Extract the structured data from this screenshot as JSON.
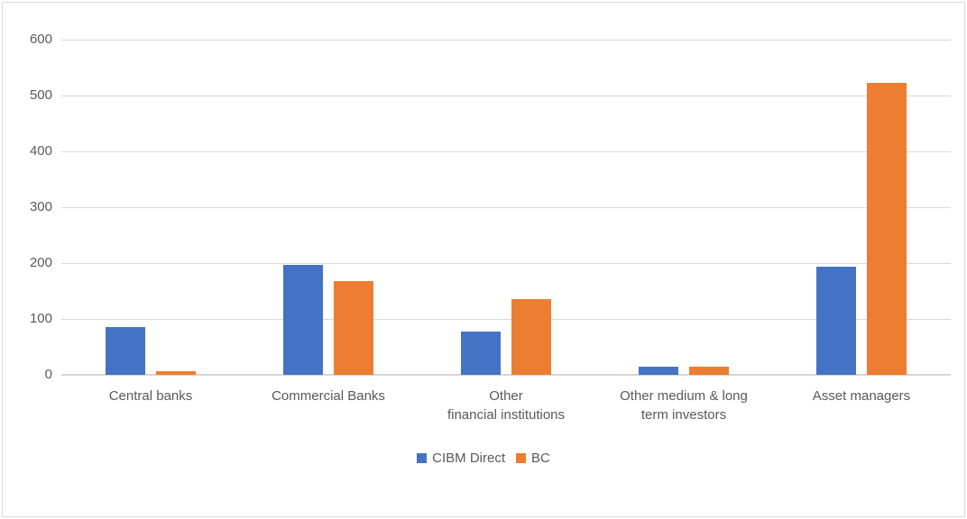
{
  "chart_data": {
    "type": "bar",
    "categories": [
      "Central banks",
      "Commercial Banks",
      "Other\nfinancial institutions",
      "Other medium & long\nterm investors",
      "Asset managers"
    ],
    "series": [
      {
        "name": "CIBM Direct",
        "color": "#4472C4",
        "values": [
          85,
          197,
          77,
          15,
          194
        ]
      },
      {
        "name": "BC",
        "color": "#ED7D31",
        "values": [
          6,
          168,
          135,
          15,
          522
        ]
      }
    ],
    "ylim": [
      0,
      600
    ],
    "yticks": [
      0,
      100,
      200,
      300,
      400,
      500,
      600
    ],
    "grid": true,
    "legend_position": "bottom",
    "colors": {
      "gridline": "#D9D9D9",
      "axis_line": "#D6D6D6",
      "axis_text": "#595959",
      "frame_border": "#D9D9D9",
      "background": "#FFFFFF"
    }
  }
}
